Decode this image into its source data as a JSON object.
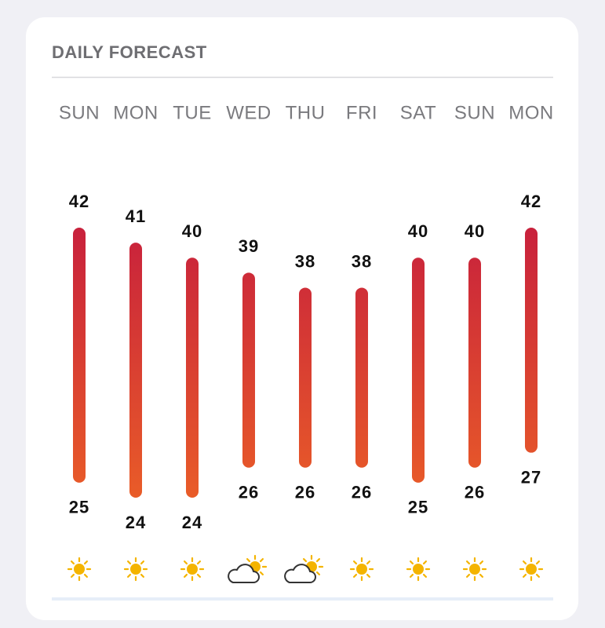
{
  "chart_data": {
    "type": "range-bar",
    "title": "DAILY FORECAST",
    "categories": [
      "SUN",
      "MON",
      "TUE",
      "WED",
      "THU",
      "FRI",
      "SAT",
      "SUN",
      "MON"
    ],
    "high": [
      42,
      41,
      40,
      39,
      38,
      38,
      40,
      40,
      42
    ],
    "low": [
      25,
      24,
      24,
      26,
      26,
      26,
      25,
      26,
      27
    ],
    "icons": [
      "sun",
      "sun",
      "sun",
      "partly-cloudy",
      "partly-cloudy",
      "sun",
      "sun",
      "sun",
      "sun"
    ],
    "color_top": "#c8213c",
    "color_bottom": "#e95c28"
  }
}
